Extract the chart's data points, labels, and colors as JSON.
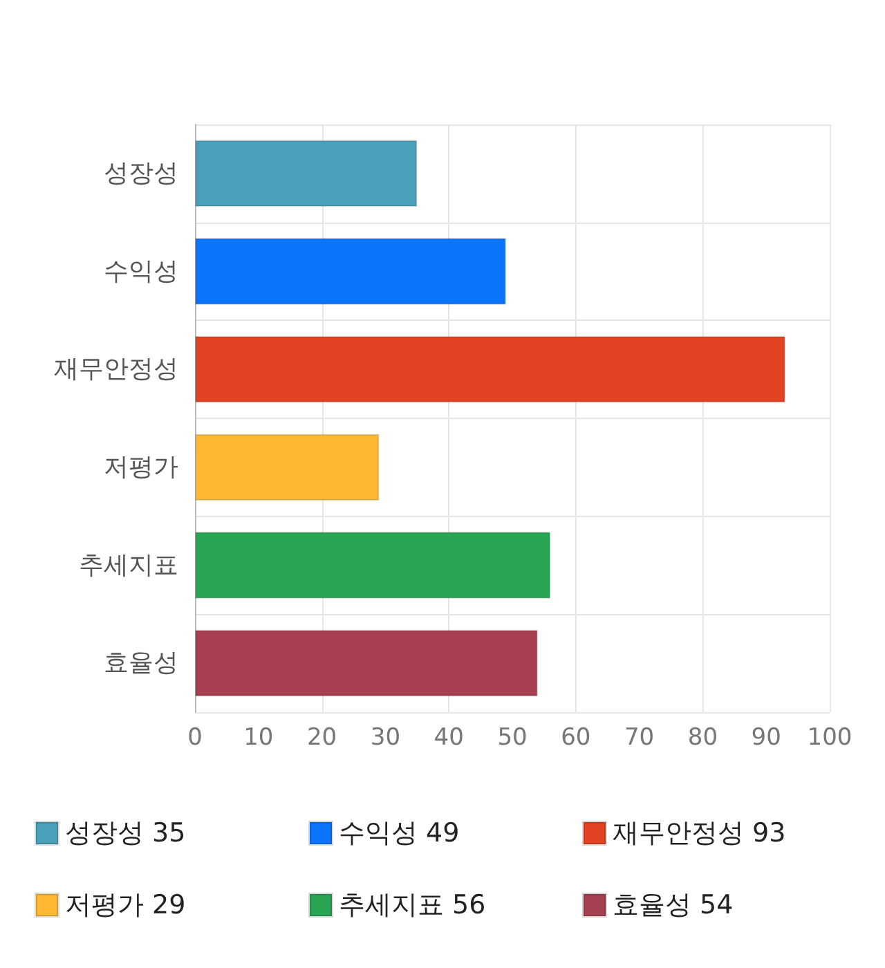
{
  "chart_data": {
    "type": "bar",
    "orientation": "horizontal",
    "stacked": true,
    "categories": [
      "성장성",
      "수익성",
      "재무안정성",
      "저평가",
      "추세지표",
      "효율성"
    ],
    "series": [
      {
        "name": "성장성 35",
        "color": "#4aa0b9",
        "values": [
          35,
          null,
          null,
          null,
          null,
          null
        ]
      },
      {
        "name": "수익성 49",
        "color": "#0a75fb",
        "values": [
          null,
          49,
          null,
          null,
          null,
          null
        ]
      },
      {
        "name": "재무안정성 93",
        "color": "#e24423",
        "values": [
          null,
          null,
          93,
          null,
          null,
          null
        ]
      },
      {
        "name": "저평가 29",
        "color": "#feb832",
        "values": [
          null,
          null,
          null,
          29,
          null,
          null
        ]
      },
      {
        "name": "추세지표 56",
        "color": "#29a654",
        "values": [
          null,
          null,
          null,
          null,
          56,
          null
        ]
      },
      {
        "name": "효율성 54",
        "color": "#a64050",
        "values": [
          null,
          null,
          null,
          null,
          null,
          54
        ]
      }
    ],
    "xlim": [
      0,
      100
    ],
    "xticks": [
      0,
      10,
      20,
      30,
      40,
      50,
      60,
      70,
      80,
      90,
      100
    ],
    "grid": true,
    "legend": "bottom"
  }
}
